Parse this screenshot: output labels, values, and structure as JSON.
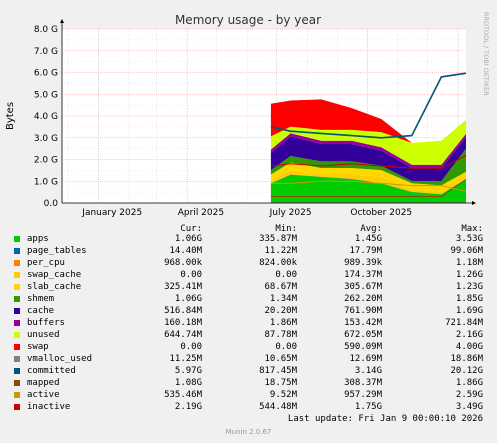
{
  "chart_data": {
    "type": "area",
    "title": "Memory usage - by year",
    "ylabel": "Bytes",
    "side_label": "RRDTOOL / TOBI OETIKER",
    "ylim": [
      0,
      8
    ],
    "y_ticks": [
      "0.0",
      "1.0 G",
      "2.0 G",
      "3.0 G",
      "4.0 G",
      "5.0 G",
      "6.0 G",
      "7.0 G",
      "8.0 G"
    ],
    "x_ticks": [
      "January 2025",
      "April 2025",
      "July 2025",
      "October 2025"
    ],
    "x_range": [
      "2024-11-25",
      "2026-01-09"
    ],
    "data_start": "2025-06-25",
    "grid": true,
    "series_sample_x": [
      "2025-06-25",
      "2025-07-15",
      "2025-08-15",
      "2025-09-15",
      "2025-10-15",
      "2025-11-15",
      "2025-12-15",
      "2026-01-09"
    ],
    "series": [
      {
        "name": "apps",
        "color": "#00cc00",
        "values": [
          0.9,
          1.3,
          1.2,
          1.1,
          0.9,
          0.5,
          0.4,
          1.1
        ]
      },
      {
        "name": "page_tables",
        "color": "#0066b3",
        "values": [
          0.01,
          0.01,
          0.01,
          0.01,
          0.01,
          0.01,
          0.01,
          0.01
        ]
      },
      {
        "name": "per_cpu",
        "color": "#ff8000",
        "values": [
          0.001,
          0.001,
          0.001,
          0.001,
          0.001,
          0.001,
          0.001,
          0.001
        ]
      },
      {
        "name": "swap_cache",
        "color": "#ffcc00",
        "values": [
          0.1,
          0.2,
          0.1,
          0.2,
          0.3,
          0.1,
          0.1,
          0.0
        ]
      },
      {
        "name": "slab_cache",
        "color": "#ffd700",
        "values": [
          0.3,
          0.35,
          0.3,
          0.3,
          0.3,
          0.3,
          0.3,
          0.33
        ]
      },
      {
        "name": "shmem",
        "color": "#339900",
        "values": [
          0.2,
          0.3,
          0.3,
          0.3,
          0.2,
          0.1,
          0.2,
          1.06
        ]
      },
      {
        "name": "cache",
        "color": "#330099",
        "values": [
          0.8,
          0.9,
          0.8,
          0.8,
          0.7,
          0.6,
          0.6,
          0.52
        ]
      },
      {
        "name": "buffers",
        "color": "#990099",
        "values": [
          0.15,
          0.15,
          0.15,
          0.15,
          0.15,
          0.15,
          0.15,
          0.16
        ]
      },
      {
        "name": "unused",
        "color": "#ccff00",
        "values": [
          0.6,
          0.3,
          0.5,
          0.5,
          0.7,
          1.0,
          1.1,
          0.64
        ]
      },
      {
        "name": "swap",
        "color": "#ff0000",
        "values": [
          1.5,
          1.2,
          1.4,
          1.0,
          0.6,
          0.0,
          0.0,
          0.0
        ]
      },
      {
        "name": "vmalloc_used",
        "color": "#808080",
        "values": [
          0.012,
          0.012,
          0.012,
          0.013,
          0.013,
          0.013,
          0.013,
          0.011
        ]
      },
      {
        "name": "committed",
        "color": "#005578",
        "values": [
          3.5,
          3.3,
          3.2,
          3.1,
          3.0,
          3.1,
          5.8,
          5.97
        ]
      },
      {
        "name": "mapped",
        "color": "#8a4c00",
        "values": [
          0.3,
          0.3,
          0.3,
          0.3,
          0.3,
          0.3,
          0.3,
          1.08
        ]
      },
      {
        "name": "active",
        "color": "#cc9900",
        "values": [
          0.9,
          0.9,
          1.0,
          1.0,
          0.9,
          0.8,
          0.8,
          0.54
        ]
      },
      {
        "name": "inactive",
        "color": "#cc0000",
        "values": [
          1.7,
          1.8,
          1.7,
          1.8,
          1.7,
          1.6,
          1.6,
          2.19
        ]
      }
    ]
  },
  "legend": {
    "headers": {
      "cur": "Cur:",
      "min": "Min:",
      "avg": "Avg:",
      "max": "Max:"
    },
    "rows": [
      {
        "name": "apps",
        "color": "#00cc00",
        "cur": "1.06G",
        "min": "335.87M",
        "avg": "1.45G",
        "max": "3.53G"
      },
      {
        "name": "page_tables",
        "color": "#0066b3",
        "cur": "14.40M",
        "min": "11.22M",
        "avg": "17.79M",
        "max": "99.06M"
      },
      {
        "name": "per_cpu",
        "color": "#ff8000",
        "cur": "968.00k",
        "min": "824.00k",
        "avg": "989.39k",
        "max": "1.18M"
      },
      {
        "name": "swap_cache",
        "color": "#ffcc00",
        "cur": "0.00",
        "min": "0.00",
        "avg": "174.37M",
        "max": "1.26G"
      },
      {
        "name": "slab_cache",
        "color": "#ffd700",
        "cur": "325.41M",
        "min": "68.67M",
        "avg": "305.67M",
        "max": "1.23G"
      },
      {
        "name": "shmem",
        "color": "#339900",
        "cur": "1.06G",
        "min": "1.34M",
        "avg": "262.20M",
        "max": "1.85G"
      },
      {
        "name": "cache",
        "color": "#330099",
        "cur": "516.84M",
        "min": "20.20M",
        "avg": "761.90M",
        "max": "1.69G"
      },
      {
        "name": "buffers",
        "color": "#990099",
        "cur": "160.18M",
        "min": "1.86M",
        "avg": "153.42M",
        "max": "721.84M"
      },
      {
        "name": "unused",
        "color": "#ccff00",
        "cur": "644.74M",
        "min": "87.78M",
        "avg": "672.05M",
        "max": "2.16G"
      },
      {
        "name": "swap",
        "color": "#ff0000",
        "cur": "0.00",
        "min": "0.00",
        "avg": "590.09M",
        "max": "4.00G"
      },
      {
        "name": "vmalloc_used",
        "color": "#808080",
        "cur": "11.25M",
        "min": "10.65M",
        "avg": "12.69M",
        "max": "18.86M"
      },
      {
        "name": "committed",
        "color": "#005578",
        "cur": "5.97G",
        "min": "817.45M",
        "avg": "3.14G",
        "max": "20.12G"
      },
      {
        "name": "mapped",
        "color": "#8a4c00",
        "cur": "1.08G",
        "min": "18.75M",
        "avg": "308.37M",
        "max": "1.86G"
      },
      {
        "name": "active",
        "color": "#cc9900",
        "cur": "535.46M",
        "min": "9.52M",
        "avg": "957.29M",
        "max": "2.59G"
      },
      {
        "name": "inactive",
        "color": "#cc0000",
        "cur": "2.19G",
        "min": "544.48M",
        "avg": "1.75G",
        "max": "3.49G"
      }
    ]
  },
  "last_update": "Last update: Fri Jan  9 00:00:10 2026",
  "footer": "Munin 2.0.67"
}
